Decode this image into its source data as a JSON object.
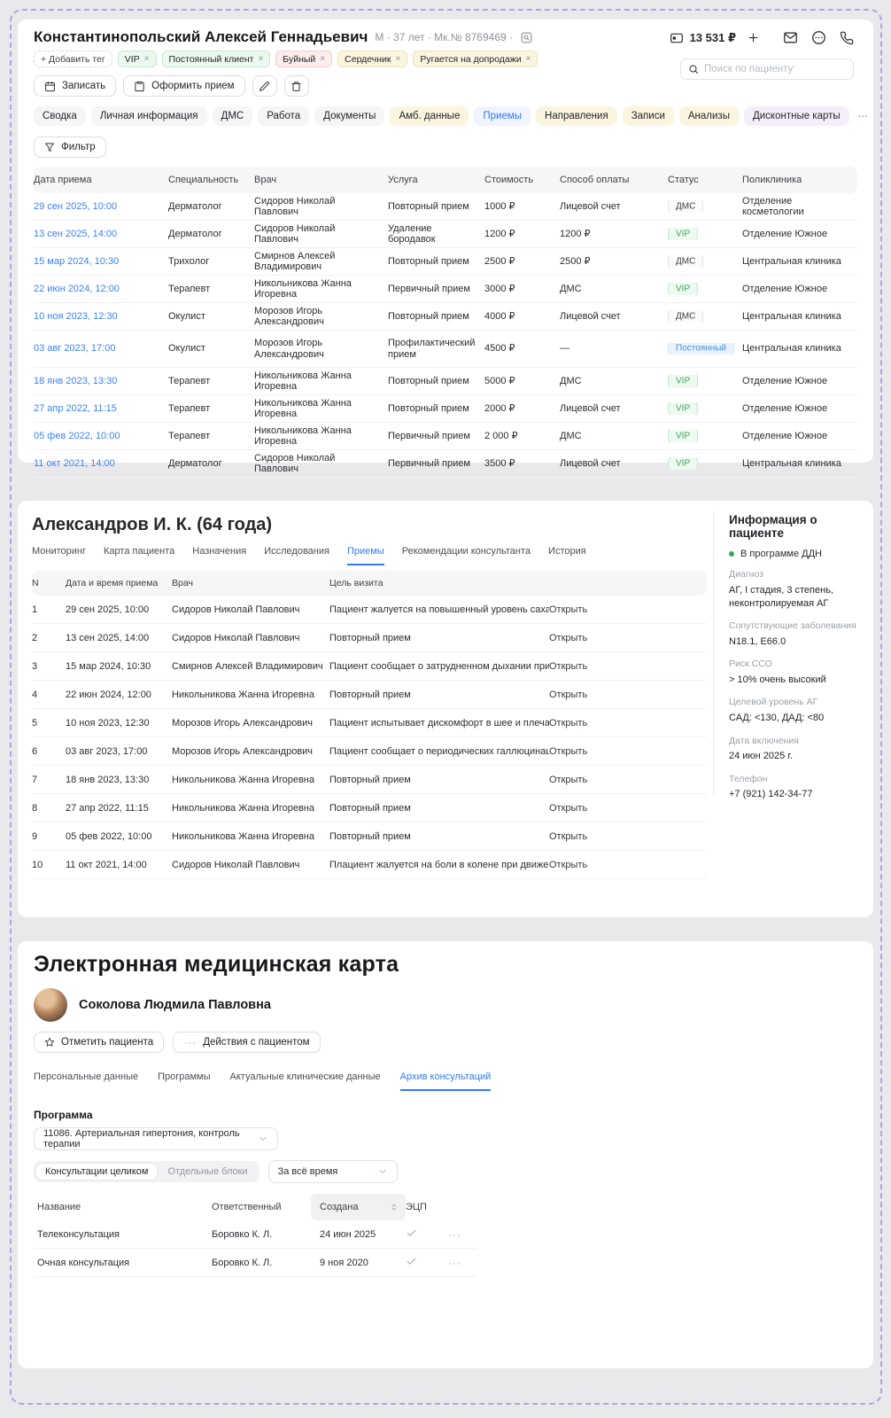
{
  "colors": {
    "accent_blue": "#2e7cf6",
    "link_blue": "#3b82f6",
    "status_green": "#34a853",
    "dashed_border": "#b3a3e3",
    "tag_green_bg": "#ebf9ef",
    "tag_red_bg": "#fdeded",
    "tag_yellow_bg": "#fbf5e0",
    "tab_yellow_bg": "#fbf5df",
    "tab_purple_bg": "#f5eefa"
  },
  "glyphs": {
    "x": "×",
    "dots": "···",
    "more": "⋯"
  },
  "patient_header": {
    "name": "Константинопольский Алексей Геннадьевич",
    "meta": "М · 37 лет · Мк.№ 8769469 ·",
    "balance": "13 531 ₽",
    "search_placeholder": "Поиск по пациенту",
    "add_tag": "+ Добавить тег",
    "tags": [
      {
        "label": "VIP",
        "color": "green"
      },
      {
        "label": "Постоянный клиент",
        "color": "green"
      },
      {
        "label": "Буйный",
        "color": "red"
      },
      {
        "label": "Сердечник",
        "color": "yellow"
      },
      {
        "label": "Ругается на допродажи",
        "color": "yellow"
      }
    ],
    "book_button": "Записать",
    "checkin_button": "Оформить прием",
    "tabs": [
      {
        "label": "Сводка",
        "style": "gray"
      },
      {
        "label": "Личная информация",
        "style": "gray"
      },
      {
        "label": "ДМС",
        "style": "gray"
      },
      {
        "label": "Работа",
        "style": "gray"
      },
      {
        "label": "Документы",
        "style": "gray"
      },
      {
        "label": "Амб. данные",
        "style": "yellow"
      },
      {
        "label": "Приемы",
        "style": "active"
      },
      {
        "label": "Направления",
        "style": "yellow"
      },
      {
        "label": "Записи",
        "style": "yellow"
      },
      {
        "label": "Анализы",
        "style": "yellow"
      },
      {
        "label": "Дисконтные карты",
        "style": "purple"
      },
      {
        "label": "⋯",
        "style": "plain"
      }
    ],
    "filter_button": "Фильтр"
  },
  "appointments": {
    "headers": [
      "Дата приема",
      "Специальность",
      "Врач",
      "Услуга",
      "Стоимость",
      "Способ оплаты",
      "Статус",
      "Поликлиника"
    ],
    "rows": [
      {
        "date": "29 сен 2025, 10:00",
        "specialty": "Дерматолог",
        "doctor": "Сидоров Николай Павлович",
        "service": "Повторный прием",
        "cost": "1000 ₽",
        "payment": "Лицевой счет",
        "status": "ДМС",
        "status_color": "gray",
        "clinic": "Отделение косметологии"
      },
      {
        "date": "13 сен 2025, 14:00",
        "specialty": "Дерматолог",
        "doctor": "Сидоров Николай Павлович",
        "service": "Удаление бородавок",
        "cost": "1200 ₽",
        "payment": "1200 ₽",
        "status": "VIP",
        "status_color": "green",
        "clinic": "Отделение Южное"
      },
      {
        "date": "15 мар 2024, 10:30",
        "specialty": "Трихолог",
        "doctor": "Смирнов Алексей Владимирович",
        "service": "Повторный прием",
        "cost": "2500 ₽",
        "payment": "2500 ₽",
        "status": "ДМС",
        "status_color": "gray",
        "clinic": "Центральная клиника"
      },
      {
        "date": "22 июн 2024, 12:00",
        "specialty": "Терапевт",
        "doctor": "Никольникова Жанна Игоревна",
        "service": "Первичный прием",
        "cost": "3000 ₽",
        "payment": "ДМС",
        "status": "VIP",
        "status_color": "green",
        "clinic": "Отделение Южное"
      },
      {
        "date": "10 ноя 2023, 12:30",
        "specialty": "Окулист",
        "doctor": "Морозов Игорь Александрович",
        "service": "Повторный прием",
        "cost": "4000 ₽",
        "payment": "Лицевой счет",
        "status": "ДМС",
        "status_color": "gray",
        "clinic": "Центральная клиника"
      },
      {
        "date": "03 авг 2023, 17:00",
        "specialty": "Окулист",
        "doctor": "Морозов Игорь Александрович",
        "service": "Профилактический прием",
        "cost": "4500 ₽",
        "payment": "—",
        "status": "Постоянный",
        "status_color": "blue",
        "clinic": "Центральная клиника"
      },
      {
        "date": "18 янв 2023, 13:30",
        "specialty": "Терапевт",
        "doctor": "Никольникова Жанна Игоревна",
        "service": "Повторный прием",
        "cost": "5000 ₽",
        "payment": "ДМС",
        "status": "VIP",
        "status_color": "green",
        "clinic": "Отделение Южное"
      },
      {
        "date": "27 апр 2022, 11:15",
        "specialty": "Терапевт",
        "doctor": "Никольникова Жанна Игоревна",
        "service": "Повторный прием",
        "cost": "2000 ₽",
        "payment": "Лицевой счет",
        "status": "VIP",
        "status_color": "green",
        "clinic": "Отделение Южное"
      },
      {
        "date": "05 фев 2022, 10:00",
        "specialty": "Терапевт",
        "doctor": "Никольникова Жанна Игоревна",
        "service": "Первичный прием",
        "cost": "2 000 ₽",
        "payment": "ДМС",
        "status": "VIP",
        "status_color": "green",
        "clinic": "Отделение Южное"
      },
      {
        "date": "11 окт 2021, 14:00",
        "specialty": "Дерматолог",
        "doctor": "Сидоров Николай Павлович",
        "service": "Первичный прием",
        "cost": "3500 ₽",
        "payment": "Лицевой счет",
        "status": "VIP",
        "status_color": "green",
        "clinic": "Центральная клиника"
      }
    ]
  },
  "consult_section": {
    "title": "Александров И. К. (64 года)",
    "tabs": [
      "Мониторинг",
      "Карта пациента",
      "Назначения",
      "Исследования",
      "Приемы",
      "Рекомендации консультанта",
      "История"
    ],
    "active_tab": "Приемы",
    "table": {
      "headers": [
        "N",
        "Дата и время приема",
        "Врач",
        "Цель визита"
      ],
      "open_label": "Открыть",
      "rows": [
        {
          "n": "1",
          "datetime": "29 сен 2025, 10:00",
          "doctor": "Сидоров Николай Павлович",
          "purpose": "Пациент жалуется на повышенный уровень сахара..."
        },
        {
          "n": "2",
          "datetime": "13 сен 2025, 14:00",
          "doctor": "Сидоров Николай Павлович",
          "purpose": "Повторный прием"
        },
        {
          "n": "3",
          "datetime": "15 мар 2024, 10:30",
          "doctor": "Смирнов Алексей Владимирович",
          "purpose": "Пациент сообщает о затрудненном дыхании при ф..."
        },
        {
          "n": "4",
          "datetime": "22 июн 2024, 12:00",
          "doctor": "Никольникова Жанна Игоревна",
          "purpose": "Повторный прием"
        },
        {
          "n": "5",
          "datetime": "10 ноя 2023, 12:30",
          "doctor": "Морозов Игорь Александрович",
          "purpose": "Пациент испытывает дискомфорт в шее и плечах."
        },
        {
          "n": "6",
          "datetime": "03 авг 2023, 17:00",
          "doctor": "Морозов Игорь Александрович",
          "purpose": "Пациент сообщает о периодических галлюцинация..."
        },
        {
          "n": "7",
          "datetime": "18 янв 2023, 13:30",
          "doctor": "Никольникова Жанна Игоревна",
          "purpose": "Повторный прием"
        },
        {
          "n": "8",
          "datetime": "27 апр 2022, 11:15",
          "doctor": "Никольникова Жанна Игоревна",
          "purpose": "Повторный прием"
        },
        {
          "n": "9",
          "datetime": "05 фев 2022, 10:00",
          "doctor": "Никольникова Жанна Игоревна",
          "purpose": "Повторный прием"
        },
        {
          "n": "10",
          "datetime": "11 окт 2021, 14:00",
          "doctor": "Сидоров Николай Павлович",
          "purpose": "Плациент жалуется на боли в колене при движении."
        }
      ]
    },
    "info_panel": {
      "title": "Информация о пациенте",
      "status": "В программе ДДН",
      "fields": [
        {
          "label": "Диагноз",
          "value": "АГ, I стадия, 3 степень, неконтролируемая АГ"
        },
        {
          "label": "Сопутствующие заболевания",
          "value": "N18.1, E66.0"
        },
        {
          "label": "Риск ССО",
          "value": "> 10% очень высокий"
        },
        {
          "label": "Целевой уровень АГ",
          "value": "САД: <130, ДАД: <80"
        },
        {
          "label": "Дата включения",
          "value": "24 июн 2025 г."
        },
        {
          "label": "Телефон",
          "value": "+7 (921) 142-34-77"
        }
      ]
    }
  },
  "emr_section": {
    "title": "Электронная медицинская карта",
    "patient_name": "Соколова Людмила Павловна",
    "mark_button": "Отметить пациента",
    "actions_button": "Действия с пациентом",
    "tabs": [
      "Персональные данные",
      "Программы",
      "Актуальные клинические данные",
      "Архив консультаций"
    ],
    "active_tab": "Архив консультаций",
    "program_label": "Программа",
    "program_value": "11086. Артериальная гипертония, контроль терапии",
    "segments": [
      "Консультации целиком",
      "Отдельные блоки"
    ],
    "active_segment": "Консультации целиком",
    "period_value": "За всё время",
    "table": {
      "headers": [
        "Название",
        "Ответственный",
        "Создана",
        "ЭЦП"
      ],
      "rows": [
        {
          "name": "Телеконсультация",
          "responsible": "Боровко К. Л.",
          "created": "24 июн 2025",
          "signed": "✓"
        },
        {
          "name": "Очная консультация",
          "responsible": "Боровко К. Л.",
          "created": "9 ноя 2020",
          "signed": "✓"
        }
      ]
    }
  }
}
